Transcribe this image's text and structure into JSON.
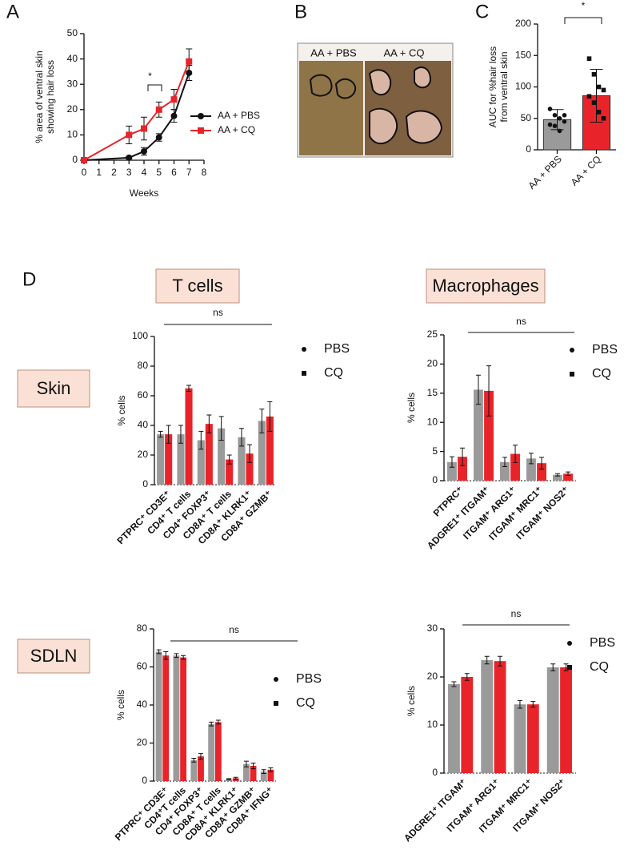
{
  "chart_data": [
    {
      "type": "line",
      "panel_label": "A",
      "xlabel": "Weeks",
      "ylabel": [
        "% area of ventral skin",
        "showing hair loss"
      ],
      "x": [
        0,
        3,
        4,
        5,
        6,
        7
      ],
      "xlim": [
        0,
        8
      ],
      "xticks": [
        0,
        1,
        2,
        3,
        4,
        5,
        6,
        7,
        8
      ],
      "ylim": [
        0,
        50
      ],
      "yticks": [
        0,
        10,
        20,
        30,
        40,
        50
      ],
      "series": [
        {
          "name": "AA + PBS",
          "color": "#111111",
          "marker": "circle",
          "values": [
            0,
            1,
            3.5,
            9,
            17.5,
            34.5
          ],
          "errors": [
            0,
            0.5,
            1.5,
            1.5,
            2.5,
            3
          ]
        },
        {
          "name": "AA + CQ",
          "color": "#e8242a",
          "marker": "square",
          "values": [
            0,
            10,
            12.5,
            20,
            24,
            39
          ],
          "errors": [
            0,
            3.5,
            4.5,
            3,
            4,
            5
          ]
        }
      ],
      "legend": "right",
      "annotation": "*"
    },
    {
      "type": "bar",
      "panel_label": "C",
      "ylabel": [
        "AUC for %hair loss",
        "from ventral skin"
      ],
      "categories": [
        "AA + PBS",
        "AA + CQ"
      ],
      "values": [
        48,
        86
      ],
      "errors": [
        16,
        42
      ],
      "colors": [
        "#9a9a9a",
        "#e8242a"
      ],
      "points": [
        [
          65,
          55,
          50,
          45,
          40,
          38,
          30,
          55
        ],
        [
          145,
          120,
          100,
          95,
          85,
          75,
          60,
          50
        ]
      ],
      "ylim": [
        0,
        200
      ],
      "yticks": [
        0,
        50,
        100,
        150,
        200
      ],
      "annotation": "*"
    },
    {
      "type": "grouped_bar",
      "ylabel": "% cells",
      "ylim": [
        0,
        100
      ],
      "yticks": [
        0,
        20,
        40,
        60,
        80,
        100
      ],
      "categories": [
        "PTPRC⁺ CD3E⁺",
        "CD4⁺ T cells",
        "CD4⁺ FOXP3⁺",
        "CD8A⁺ T cells",
        "CD8A⁺ KLRK1⁺",
        "CD8A⁺ GZMB⁺"
      ],
      "series": [
        {
          "name": "PBS",
          "color": "#9a9a9a",
          "values": [
            34,
            34,
            30,
            38,
            32,
            43
          ],
          "errors": [
            2,
            6,
            6,
            8,
            6,
            8
          ]
        },
        {
          "name": "CQ",
          "color": "#e8242a",
          "values": [
            34,
            65,
            41,
            17,
            21,
            46
          ],
          "errors": [
            6,
            2,
            6,
            3,
            6,
            10
          ]
        }
      ],
      "annotation": "ns"
    },
    {
      "type": "grouped_bar",
      "ylabel": "% cells",
      "ylim": [
        0,
        25
      ],
      "yticks": [
        0,
        5,
        10,
        15,
        20,
        25
      ],
      "categories": [
        "PTPRC⁺",
        "ADGRE1⁺ ITGAM⁺",
        "ITGAM⁺ ARG1⁺",
        "ITGAM⁺ MRC1⁺",
        "ITGAM⁺ NOS2⁺"
      ],
      "series": [
        {
          "name": "PBS",
          "color": "#9a9a9a",
          "values": [
            3.2,
            15.6,
            3.2,
            3.8,
            1.0
          ],
          "errors": [
            0.9,
            2.5,
            0.8,
            0.9,
            0.2
          ]
        },
        {
          "name": "CQ",
          "color": "#e8242a",
          "values": [
            4.1,
            15.4,
            4.6,
            3.0,
            1.2
          ],
          "errors": [
            1.5,
            4.3,
            1.5,
            1.0,
            0.3
          ]
        }
      ],
      "annotation": "ns"
    },
    {
      "type": "grouped_bar",
      "ylabel": "% cells",
      "ylim": [
        0,
        80
      ],
      "yticks": [
        0,
        20,
        40,
        60,
        80
      ],
      "categories": [
        "PTPRC⁺ CD3E⁺",
        "CD4⁺T cells",
        "CD4⁺ FOXP3⁺",
        "CD8A⁺ T cells",
        "CD8A⁺ KLRK1⁺",
        "CD8A⁺ GZMB⁺",
        "CD8A⁺ IFNG⁺"
      ],
      "series": [
        {
          "name": "PBS",
          "color": "#9a9a9a",
          "values": [
            68,
            66,
            11,
            30,
            1,
            9,
            5
          ],
          "errors": [
            1,
            1,
            1,
            1,
            0.3,
            1.5,
            1
          ]
        },
        {
          "name": "CQ",
          "color": "#e8242a",
          "values": [
            66,
            65,
            13,
            31,
            1.5,
            8,
            6
          ],
          "errors": [
            2,
            1,
            1.5,
            1,
            0.5,
            1.5,
            1
          ]
        }
      ],
      "annotation": "ns"
    },
    {
      "type": "grouped_bar",
      "ylabel": "% cells",
      "ylim": [
        0,
        30
      ],
      "yticks": [
        0,
        10,
        20,
        30
      ],
      "categories": [
        "ADGRE1⁺ ITGAM⁺",
        "ITGAM⁺ ARG1⁺",
        "ITGAM⁺ MRC1⁺",
        "ITGAM⁺ NOS2⁺"
      ],
      "series": [
        {
          "name": "PBS",
          "color": "#9a9a9a",
          "values": [
            18.5,
            23.5,
            14.3,
            22
          ],
          "errors": [
            0.5,
            0.8,
            0.8,
            0.7
          ]
        },
        {
          "name": "CQ",
          "color": "#e8242a",
          "values": [
            20,
            23.3,
            14.3,
            22
          ],
          "errors": [
            0.7,
            1,
            0.6,
            0.7
          ]
        }
      ],
      "annotation": "ns"
    }
  ],
  "panel_b": {
    "label": "B",
    "captions": [
      "AA + PBS",
      "AA + CQ"
    ]
  },
  "panel_d": {
    "label": "D",
    "column_titles": [
      "T cells",
      "Macrophages"
    ],
    "row_titles": [
      "Skin",
      "SDLN"
    ]
  }
}
